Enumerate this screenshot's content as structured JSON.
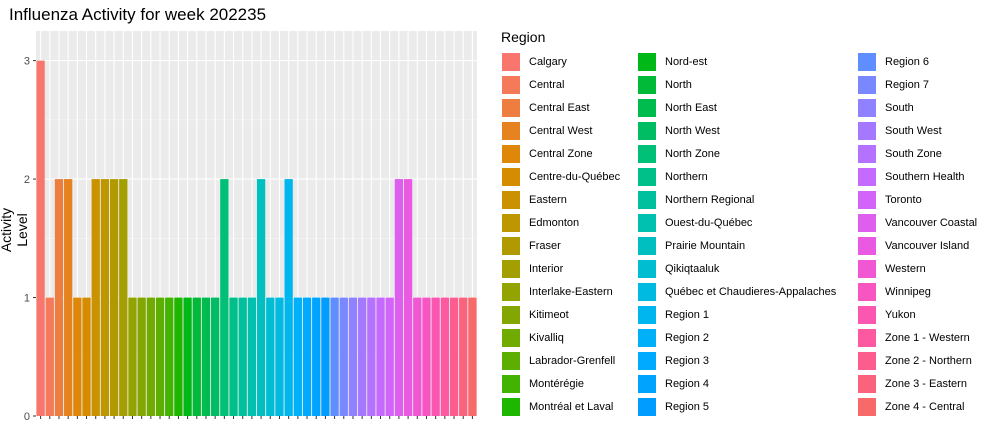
{
  "chart_data": {
    "type": "bar",
    "title": "Influenza Activity for week 202235",
    "xlabel": "",
    "ylabel": "Activity Level",
    "ylim": [
      0,
      3.25
    ],
    "yticks": [
      0,
      1,
      2,
      3
    ],
    "grid": true,
    "legend_title": "Region",
    "legend_position": "right",
    "categories": [
      "Calgary",
      "Central",
      "Central East",
      "Central West",
      "Central Zone",
      "Centre-du-Québec",
      "Eastern",
      "Edmonton",
      "Fraser",
      "Interior",
      "Interlake-Eastern",
      "Kitimeot",
      "Kivalliq",
      "Labrador-Grenfell",
      "Montérégie",
      "Montréal et Laval",
      "Nord-est",
      "North",
      "North East",
      "North West",
      "North Zone",
      "Northern",
      "Northern Regional",
      "Ouest-du-Québec",
      "Prairie Mountain",
      "Qikiqtaaluk",
      "Québec et Chaudieres-Appalaches",
      "Region 1",
      "Region 2",
      "Region 3",
      "Region 4",
      "Region 5",
      "Region 6",
      "Region 7",
      "South",
      "South West",
      "South Zone",
      "Southern Health",
      "Toronto",
      "Vancouver Coastal",
      "Vancouver Island",
      "Western",
      "Winnipeg",
      "Yukon",
      "Zone 1 - Western",
      "Zone 2 - Northern",
      "Zone 3 - Eastern",
      "Zone 4 - Central"
    ],
    "values": [
      3,
      1,
      2,
      2,
      1,
      1,
      2,
      2,
      2,
      2,
      1,
      1,
      1,
      1,
      1,
      1,
      1,
      1,
      1,
      1,
      2,
      1,
      1,
      1,
      2,
      1,
      1,
      2,
      1,
      1,
      1,
      1,
      1,
      1,
      1,
      1,
      1,
      1,
      1,
      2,
      2,
      1,
      1,
      1,
      1,
      1,
      1,
      1
    ],
    "colors": [
      "#F8766D",
      "#F47A5A",
      "#EE7E3F",
      "#E78220",
      "#DF8709",
      "#D58C00",
      "#CA9100",
      "#BE9600",
      "#B19A00",
      "#A39F00",
      "#93A300",
      "#83A700",
      "#71AB00",
      "#5CAF00",
      "#41B300",
      "#1FB600",
      "#00B818",
      "#00BA38",
      "#00BC4E",
      "#00BD63",
      "#00BF77",
      "#00C08A",
      "#00C09D",
      "#00C0AF",
      "#00BFC1",
      "#00BDD2",
      "#00BAE2",
      "#00B6EF",
      "#00B1F9",
      "#00ABFF",
      "#00A4FF",
      "#009CFF",
      "#5E8EFF",
      "#7A88FF",
      "#8F81FF",
      "#A479FF",
      "#B571FF",
      "#C46AFF",
      "#D264F9",
      "#DE5EEE",
      "#E959E1",
      "#F157D2",
      "#F756C2",
      "#FB57B1",
      "#FC59A0",
      "#FC5D8E",
      "#FB627B",
      "#F86A69"
    ]
  }
}
